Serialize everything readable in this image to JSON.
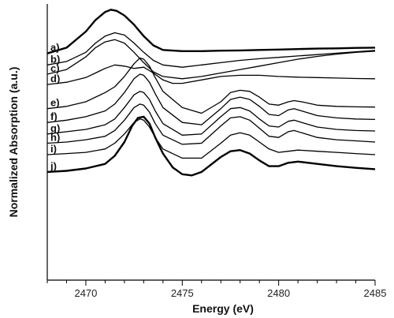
{
  "chart_data": {
    "type": "line",
    "title": "",
    "xlabel": "Energy (eV)",
    "ylabel": "Normalized Absorption (a.u.)",
    "xlim": [
      2468,
      2485
    ],
    "ylim": [
      0,
      12
    ],
    "xticks": [
      2470,
      2475,
      2480,
      2485
    ],
    "grid": false,
    "legend": "inline labels at left",
    "series": [
      {
        "name": "a)",
        "bold": true,
        "x": [
          2468,
          2469,
          2470,
          2470.5,
          2471,
          2471.3,
          2471.6,
          2472,
          2472.5,
          2473,
          2473.5,
          2474,
          2475,
          2476,
          2477,
          2478,
          2479,
          2480,
          2481,
          2482,
          2483,
          2484,
          2485
        ],
        "y": [
          9.85,
          10.1,
          10.8,
          11.3,
          11.65,
          11.75,
          11.7,
          11.5,
          11.1,
          10.6,
          10.2,
          10.0,
          9.95,
          9.95,
          9.97,
          9.98,
          10.0,
          10.02,
          10.04,
          10.06,
          10.07,
          10.09,
          10.1
        ]
      },
      {
        "name": "b)",
        "bold": false,
        "x": [
          2468,
          2469,
          2470,
          2470.5,
          2471,
          2471.5,
          2472,
          2472.5,
          2473,
          2473.5,
          2474,
          2475,
          2476,
          2477,
          2478,
          2479,
          2480,
          2481,
          2482,
          2483,
          2484,
          2485
        ],
        "y": [
          9.35,
          9.5,
          9.9,
          10.3,
          10.6,
          10.75,
          10.65,
          10.3,
          9.9,
          9.55,
          9.35,
          9.25,
          9.35,
          9.45,
          9.55,
          9.62,
          9.68,
          9.74,
          9.8,
          9.86,
          9.92,
          9.98
        ]
      },
      {
        "name": "c)",
        "bold": false,
        "x": [
          2468,
          2469,
          2470,
          2470.5,
          2471,
          2471.5,
          2472,
          2472.5,
          2473,
          2473.5,
          2474,
          2475,
          2476,
          2477,
          2478,
          2479,
          2480,
          2481,
          2482,
          2483,
          2484,
          2485
        ],
        "y": [
          8.95,
          9.15,
          9.7,
          10.1,
          10.35,
          10.45,
          10.3,
          9.9,
          9.45,
          9.05,
          8.85,
          8.75,
          8.85,
          9.0,
          9.15,
          9.3,
          9.45,
          9.6,
          9.72,
          9.82,
          9.9,
          9.95
        ]
      },
      {
        "name": "d)",
        "bold": false,
        "x": [
          2468,
          2469,
          2470,
          2470.5,
          2471,
          2471.5,
          2472,
          2472.5,
          2473,
          2473.5,
          2474,
          2474.5,
          2475,
          2476,
          2477,
          2478,
          2479,
          2480,
          2481,
          2482,
          2483,
          2484,
          2485
        ],
        "y": [
          8.5,
          8.6,
          8.8,
          9.0,
          9.2,
          9.35,
          9.3,
          9.2,
          9.25,
          9.0,
          8.7,
          8.55,
          8.55,
          8.7,
          8.85,
          8.9,
          8.9,
          8.85,
          8.82,
          8.8,
          8.78,
          8.76,
          8.75
        ]
      },
      {
        "name": "e)",
        "bold": false,
        "x": [
          2468,
          2469,
          2470,
          2471,
          2471.5,
          2472,
          2472.5,
          2472.8,
          2473,
          2473.3,
          2473.6,
          2474,
          2475,
          2476,
          2477,
          2477.5,
          2478,
          2478.5,
          2479,
          2479.5,
          2480,
          2480.5,
          2480.8,
          2481.2,
          2482,
          2483,
          2484,
          2485
        ],
        "y": [
          7.45,
          7.55,
          7.75,
          8.15,
          8.4,
          8.85,
          9.4,
          9.65,
          9.6,
          9.3,
          8.8,
          8.2,
          7.5,
          7.25,
          7.75,
          8.15,
          8.25,
          8.2,
          7.95,
          7.65,
          7.6,
          7.75,
          7.8,
          7.75,
          7.6,
          7.55,
          7.53,
          7.52
        ]
      },
      {
        "name": "f)",
        "bold": false,
        "x": [
          2468,
          2469,
          2470,
          2471,
          2471.5,
          2472,
          2472.5,
          2472.8,
          2473,
          2473.3,
          2473.6,
          2474,
          2475,
          2476,
          2477,
          2477.5,
          2478,
          2478.5,
          2479,
          2479.5,
          2480,
          2480.5,
          2480.8,
          2481.2,
          2482,
          2483,
          2484,
          2485
        ],
        "y": [
          6.85,
          6.95,
          7.1,
          7.35,
          7.65,
          8.15,
          8.75,
          8.95,
          8.9,
          8.6,
          8.1,
          7.5,
          6.85,
          6.75,
          7.45,
          7.85,
          7.95,
          7.85,
          7.55,
          7.2,
          7.15,
          7.4,
          7.45,
          7.35,
          7.15,
          7.05,
          7.0,
          6.98
        ]
      },
      {
        "name": "g)",
        "bold": false,
        "x": [
          2468,
          2469,
          2470,
          2471,
          2471.5,
          2472,
          2472.5,
          2472.8,
          2473,
          2473.3,
          2473.6,
          2474,
          2475,
          2476,
          2477,
          2477.5,
          2478,
          2478.5,
          2479,
          2479.5,
          2480,
          2480.5,
          2480.8,
          2481.2,
          2482,
          2483,
          2484,
          2485
        ],
        "y": [
          6.35,
          6.45,
          6.55,
          6.75,
          7.0,
          7.5,
          8.05,
          8.2,
          8.15,
          7.85,
          7.35,
          6.8,
          6.3,
          6.35,
          7.1,
          7.45,
          7.5,
          7.35,
          7.0,
          6.7,
          6.65,
          6.9,
          6.95,
          6.85,
          6.65,
          6.55,
          6.5,
          6.48
        ]
      },
      {
        "name": "h)",
        "bold": false,
        "x": [
          2468,
          2469,
          2470,
          2471,
          2471.5,
          2472,
          2472.5,
          2472.8,
          2473,
          2473.3,
          2473.6,
          2474,
          2475,
          2476,
          2477,
          2477.5,
          2478,
          2478.5,
          2479,
          2479.5,
          2480,
          2480.5,
          2480.8,
          2481.2,
          2482,
          2483,
          2484,
          2485
        ],
        "y": [
          5.95,
          6.0,
          6.1,
          6.25,
          6.5,
          6.95,
          7.5,
          7.65,
          7.6,
          7.3,
          6.8,
          6.3,
          5.9,
          5.95,
          6.7,
          7.05,
          7.1,
          6.95,
          6.6,
          6.25,
          6.2,
          6.45,
          6.5,
          6.4,
          6.2,
          6.1,
          6.05,
          6.0
        ]
      },
      {
        "name": "i)",
        "bold": false,
        "x": [
          2468,
          2469,
          2470,
          2471,
          2471.5,
          2472,
          2472.5,
          2472.8,
          2473,
          2473.3,
          2473.6,
          2474,
          2475,
          2476,
          2477,
          2477.5,
          2478,
          2478.5,
          2479,
          2479.5,
          2480,
          2480.5,
          2481,
          2482,
          2483,
          2484,
          2485
        ],
        "y": [
          5.45,
          5.5,
          5.55,
          5.7,
          5.95,
          6.35,
          6.85,
          7.0,
          6.95,
          6.65,
          6.2,
          5.7,
          5.3,
          5.3,
          5.95,
          6.3,
          6.4,
          6.3,
          6.0,
          5.7,
          5.55,
          5.6,
          5.65,
          5.6,
          5.55,
          5.5,
          5.45
        ]
      },
      {
        "name": "j)",
        "bold": true,
        "x": [
          2468,
          2469,
          2470,
          2471,
          2471.5,
          2472,
          2472.4,
          2472.7,
          2473,
          2473.3,
          2473.6,
          2474,
          2474.5,
          2475,
          2475.5,
          2476,
          2477,
          2477.5,
          2478,
          2478.5,
          2479,
          2479.5,
          2480,
          2480.5,
          2481,
          2482,
          2483,
          2484,
          2485
        ],
        "y": [
          4.7,
          4.75,
          4.85,
          5.05,
          5.4,
          6.0,
          6.7,
          7.05,
          7.1,
          6.8,
          6.2,
          5.5,
          4.9,
          4.6,
          4.55,
          4.7,
          5.35,
          5.6,
          5.65,
          5.5,
          5.2,
          4.95,
          4.95,
          5.1,
          5.15,
          5.05,
          4.95,
          4.88,
          4.82
        ]
      }
    ]
  }
}
